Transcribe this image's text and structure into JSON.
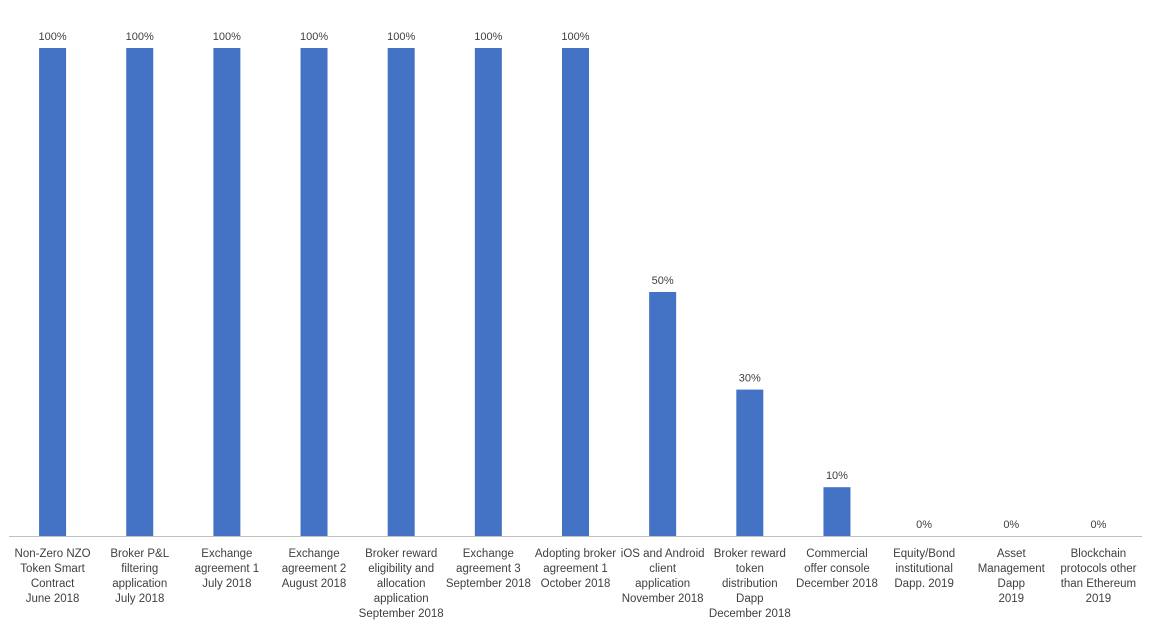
{
  "chart_data": {
    "type": "bar",
    "title": "",
    "xlabel": "",
    "ylabel": "",
    "ylim": [
      0,
      100
    ],
    "grid": false,
    "legend": "none",
    "bar_color": "#4472C4",
    "axis_color": "#BFBFBF",
    "text_color": "#404040",
    "categories": [
      [
        "Non-Zero NZO",
        "Token Smart",
        "Contract",
        "June 2018"
      ],
      [
        "Broker P&L",
        "filtering",
        "application",
        "July 2018"
      ],
      [
        "Exchange",
        "agreement 1",
        "July 2018"
      ],
      [
        "Exchange",
        "agreement 2",
        "August 2018"
      ],
      [
        "Broker reward",
        "eligibility and",
        "allocation",
        "application",
        "September 2018"
      ],
      [
        "Exchange",
        "agreement 3",
        "September 2018"
      ],
      [
        "Adopting broker",
        "agreement 1",
        "October 2018"
      ],
      [
        "iOS and Android",
        "client",
        "application",
        "November 2018"
      ],
      [
        "Broker reward",
        "token",
        "distribution",
        "Dapp",
        "December 2018"
      ],
      [
        "Commercial",
        "offer console",
        "December 2018"
      ],
      [
        "Equity/Bond",
        "institutional",
        "Dapp.  2019"
      ],
      [
        "Asset",
        "Management",
        "Dapp",
        "2019"
      ],
      [
        "Blockchain",
        "protocols other",
        "than Ethereum",
        "2019"
      ]
    ],
    "values": [
      100,
      100,
      100,
      100,
      100,
      100,
      100,
      50,
      30,
      10,
      0,
      0,
      0
    ],
    "data_labels": [
      "100%",
      "100%",
      "100%",
      "100%",
      "100%",
      "100%",
      "100%",
      "50%",
      "30%",
      "10%",
      "0%",
      "0%",
      "0%"
    ]
  }
}
